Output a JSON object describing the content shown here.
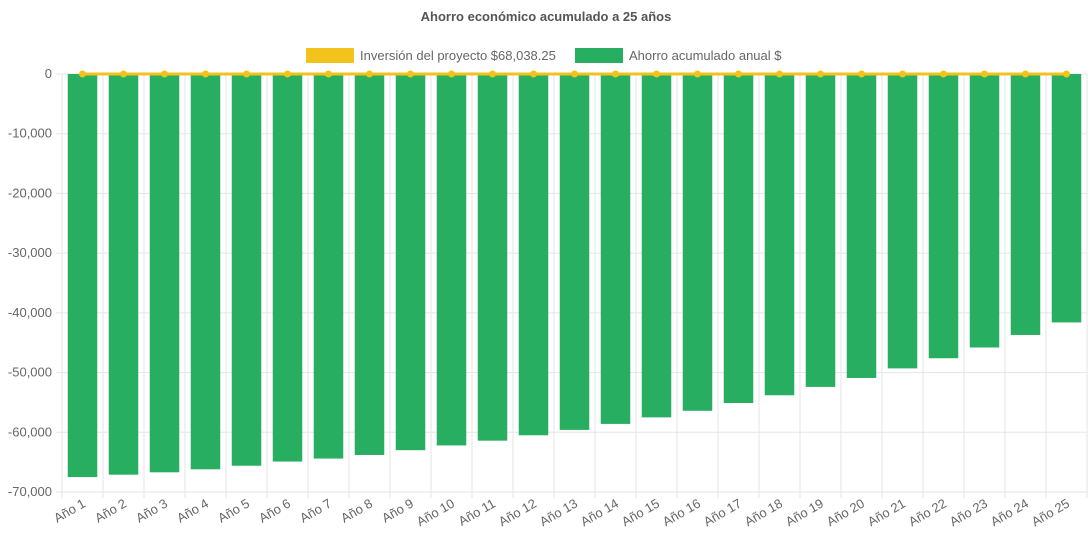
{
  "chart_data": {
    "type": "bar",
    "title": "Ahorro económico acumulado a 25 años",
    "categories": [
      "Año 1",
      "Año 2",
      "Año 3",
      "Año 4",
      "Año 5",
      "Año 6",
      "Año 7",
      "Año 8",
      "Año 9",
      "Año 10",
      "Año 11",
      "Año 12",
      "Año 13",
      "Año 14",
      "Año 15",
      "Año 16",
      "Año 17",
      "Año 18",
      "Año 19",
      "Año 20",
      "Año 21",
      "Año 22",
      "Año 23",
      "Año 24",
      "Año 25"
    ],
    "series": [
      {
        "name": "Inversión del proyecto $68,038.25",
        "type": "line",
        "color": "#f2c31a",
        "values": [
          0,
          0,
          0,
          0,
          0,
          0,
          0,
          0,
          0,
          0,
          0,
          0,
          0,
          0,
          0,
          0,
          0,
          0,
          0,
          0,
          0,
          0,
          0,
          0,
          0
        ]
      },
      {
        "name": "Ahorro acumulado anual $",
        "type": "bar",
        "color": "#27ae60",
        "values": [
          -67500,
          -67100,
          -66700,
          -66200,
          -65600,
          -64900,
          -64400,
          -63800,
          -63000,
          -62200,
          -61400,
          -60500,
          -59600,
          -58600,
          -57500,
          -56400,
          -55100,
          -53800,
          -52400,
          -50900,
          -49300,
          -47600,
          -45800,
          -43700,
          -41600
        ]
      }
    ],
    "ylim": [
      -70000,
      0
    ],
    "yticks": [
      0,
      -10000,
      -20000,
      -30000,
      -40000,
      -50000,
      -60000,
      -70000
    ],
    "ytick_labels": [
      "0",
      "-10,000",
      "-20,000",
      "-30,000",
      "-40,000",
      "-50,000",
      "-60,000",
      "-70,000"
    ],
    "grid": true,
    "legend_position": "top"
  }
}
